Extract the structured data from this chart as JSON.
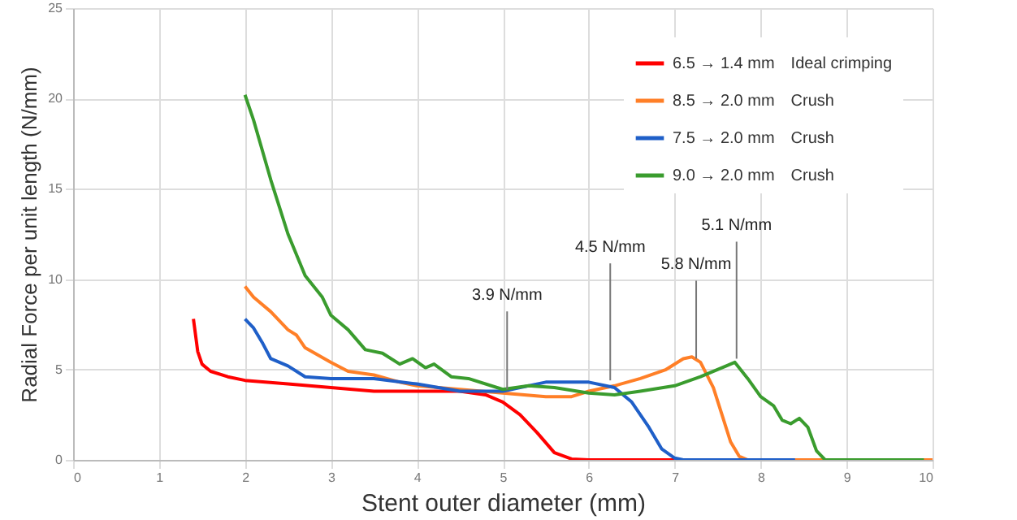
{
  "chart_data": {
    "type": "line",
    "xlabel": "Stent outer diameter (mm)",
    "ylabel": "Radial Force per unit length (N/mm)",
    "xlim": [
      0,
      10
    ],
    "ylim": [
      0,
      25
    ],
    "xticks": [
      0,
      1,
      2,
      3,
      4,
      5,
      6,
      7,
      8,
      9,
      10
    ],
    "yticks": [
      0,
      5,
      10,
      15,
      20,
      25
    ],
    "grid": true,
    "legend": "top right",
    "line_style": "solid",
    "series": [
      {
        "name": "6.5 → 1.4 mm　Ideal crimping",
        "color": "#ff0000",
        "x": [
          1.4,
          1.45,
          1.5,
          1.6,
          1.8,
          2,
          2.5,
          3,
          3.5,
          4,
          4.5,
          4.8,
          5,
          5.2,
          5.4,
          5.6,
          5.8,
          6,
          7
        ],
        "values": [
          7.8,
          6,
          5.3,
          4.9,
          4.6,
          4.4,
          4.2,
          4,
          3.8,
          3.8,
          3.8,
          3.6,
          3.2,
          2.5,
          1.5,
          0.4,
          0.05,
          0,
          0
        ]
      },
      {
        "name": "8.5 → 2.0 mm　Crush",
        "color": "#ff7f27",
        "x": [
          2,
          2.1,
          2.3,
          2.5,
          2.6,
          2.7,
          3,
          3.2,
          3.5,
          3.8,
          4,
          4.5,
          5,
          5.5,
          5.8,
          6,
          6.3,
          6.6,
          6.9,
          7.1,
          7.2,
          7.3,
          7.45,
          7.55,
          7.65,
          7.75,
          7.85,
          10
        ],
        "values": [
          9.6,
          9,
          8.2,
          7.2,
          6.9,
          6.2,
          5.4,
          4.9,
          4.7,
          4.3,
          4.1,
          3.9,
          3.7,
          3.5,
          3.5,
          3.8,
          4.1,
          4.5,
          5,
          5.6,
          5.7,
          5.4,
          4,
          2.5,
          1,
          0.2,
          0,
          0
        ]
      },
      {
        "name": "7.5 → 2.0 mm　Crush",
        "color": "#1f5fc8",
        "x": [
          2,
          2.1,
          2.2,
          2.3,
          2.5,
          2.7,
          3,
          3.5,
          4,
          4.5,
          5,
          5.5,
          6,
          6.3,
          6.5,
          6.7,
          6.85,
          7,
          7.1,
          8.4
        ],
        "values": [
          7.8,
          7.3,
          6.5,
          5.6,
          5.2,
          4.6,
          4.5,
          4.5,
          4.2,
          3.8,
          3.8,
          4.3,
          4.3,
          4,
          3.2,
          1.8,
          0.6,
          0.1,
          0,
          0
        ]
      },
      {
        "name": "9.0 → 2.0 mm　Crush",
        "color": "#3a9c2e",
        "x": [
          2,
          2.1,
          2.3,
          2.5,
          2.7,
          2.9,
          3,
          3.2,
          3.4,
          3.6,
          3.8,
          3.95,
          4.1,
          4.2,
          4.4,
          4.6,
          5,
          5.3,
          5.6,
          6,
          6.3,
          6.6,
          7,
          7.3,
          7.6,
          7.7,
          7.85,
          8,
          8.15,
          8.25,
          8.35,
          8.45,
          8.55,
          8.65,
          8.75,
          9.9
        ],
        "values": [
          20.2,
          18.8,
          15.5,
          12.5,
          10.2,
          9,
          8,
          7.2,
          6.1,
          5.9,
          5.3,
          5.6,
          5.1,
          5.3,
          4.6,
          4.5,
          3.9,
          4.1,
          4,
          3.7,
          3.6,
          3.8,
          4.1,
          4.6,
          5.2,
          5.4,
          4.5,
          3.5,
          3,
          2.2,
          2,
          2.3,
          1.8,
          0.5,
          0,
          0
        ]
      }
    ],
    "annotations": [
      {
        "text": "3.9 N/mm",
        "x": 5.05,
        "y": 3.9
      },
      {
        "text": "4.5 N/mm",
        "x": 6.25,
        "y": 4.4
      },
      {
        "text": "5.8 N/mm",
        "x": 7.25,
        "y": 5.6
      },
      {
        "text": "5.1 N/mm",
        "x": 7.72,
        "y": 5.6
      }
    ]
  }
}
